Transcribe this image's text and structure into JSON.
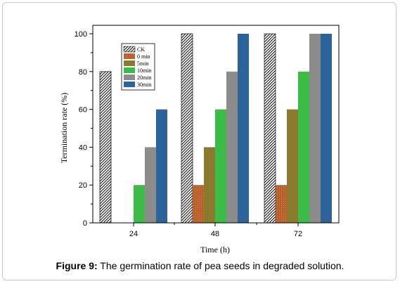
{
  "caption": {
    "label": "Figure 9:",
    "text": " The germination rate of pea seeds in degraded solution."
  },
  "chart_data": {
    "type": "bar",
    "title": "",
    "xlabel": "Time (h)",
    "ylabel": "Termination rate (%)",
    "categories": [
      "24",
      "48",
      "72"
    ],
    "ylim": [
      0,
      100
    ],
    "yticks": [
      0,
      20,
      40,
      60,
      80,
      100
    ],
    "grid": false,
    "legend_position": "top-left",
    "series": [
      {
        "name": "CK",
        "values": [
          80,
          100,
          100
        ],
        "color": "#ffffff",
        "pattern": "hatch"
      },
      {
        "name": "0 min",
        "values": [
          0,
          20,
          20
        ],
        "color": "#b5602c",
        "pattern": "dots"
      },
      {
        "name": "5min",
        "values": [
          0,
          40,
          60
        ],
        "color": "#8a7a2e",
        "pattern": "solid"
      },
      {
        "name": "10min",
        "values": [
          20,
          60,
          80
        ],
        "color": "#3dbb47",
        "pattern": "solid"
      },
      {
        "name": "20min",
        "values": [
          40,
          80,
          100
        ],
        "color": "#8c8c8c",
        "pattern": "solid"
      },
      {
        "name": "30min",
        "values": [
          60,
          100,
          100
        ],
        "color": "#2e6399",
        "pattern": "solid"
      }
    ]
  }
}
